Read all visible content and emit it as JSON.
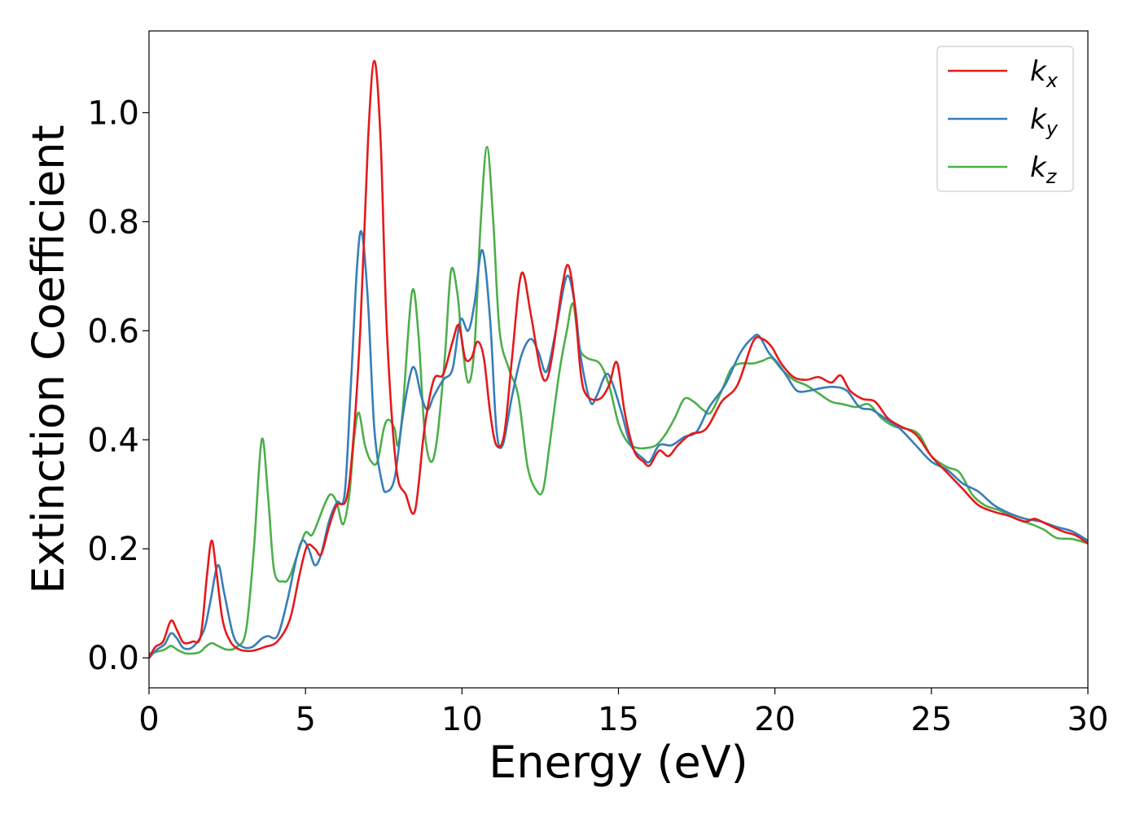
{
  "chart_data": {
    "type": "line",
    "xlabel": "Energy (eV)",
    "ylabel": "Extinction Coefficient",
    "xlim": [
      0,
      30
    ],
    "ylim": [
      -0.055,
      1.15
    ],
    "xticks": [
      0,
      5,
      10,
      15,
      20,
      25,
      30
    ],
    "yticks": [
      0.0,
      0.2,
      0.4,
      0.6,
      0.8,
      1.0
    ],
    "xtick_labels": [
      "0",
      "5",
      "10",
      "15",
      "20",
      "25",
      "30"
    ],
    "ytick_labels": [
      "0.0",
      "0.2",
      "0.4",
      "0.6",
      "0.8",
      "1.0"
    ],
    "grid": false,
    "legend_position": "top-right",
    "series": [
      {
        "name": "k",
        "subscript": "x",
        "color": "#e41a1c",
        "points": [
          [
            0,
            0.0
          ],
          [
            0.2,
            0.02
          ],
          [
            0.45,
            0.03
          ],
          [
            0.7,
            0.068
          ],
          [
            0.9,
            0.05
          ],
          [
            1.1,
            0.028
          ],
          [
            1.4,
            0.03
          ],
          [
            1.65,
            0.04
          ],
          [
            1.85,
            0.15
          ],
          [
            2.0,
            0.215
          ],
          [
            2.15,
            0.16
          ],
          [
            2.35,
            0.07
          ],
          [
            2.6,
            0.03
          ],
          [
            2.9,
            0.015
          ],
          [
            3.3,
            0.013
          ],
          [
            3.7,
            0.02
          ],
          [
            4.1,
            0.03
          ],
          [
            4.5,
            0.07
          ],
          [
            4.8,
            0.15
          ],
          [
            5.05,
            0.205
          ],
          [
            5.3,
            0.2
          ],
          [
            5.5,
            0.19
          ],
          [
            5.75,
            0.24
          ],
          [
            6.0,
            0.28
          ],
          [
            6.3,
            0.29
          ],
          [
            6.5,
            0.38
          ],
          [
            6.75,
            0.6
          ],
          [
            7.0,
            0.95
          ],
          [
            7.2,
            1.095
          ],
          [
            7.4,
            0.95
          ],
          [
            7.6,
            0.6
          ],
          [
            7.9,
            0.35
          ],
          [
            8.2,
            0.3
          ],
          [
            8.5,
            0.27
          ],
          [
            8.8,
            0.42
          ],
          [
            9.1,
            0.51
          ],
          [
            9.4,
            0.52
          ],
          [
            9.7,
            0.58
          ],
          [
            9.9,
            0.61
          ],
          [
            10.1,
            0.55
          ],
          [
            10.3,
            0.55
          ],
          [
            10.5,
            0.58
          ],
          [
            10.7,
            0.55
          ],
          [
            10.9,
            0.45
          ],
          [
            11.1,
            0.39
          ],
          [
            11.35,
            0.41
          ],
          [
            11.6,
            0.55
          ],
          [
            11.9,
            0.705
          ],
          [
            12.2,
            0.63
          ],
          [
            12.5,
            0.53
          ],
          [
            12.7,
            0.51
          ],
          [
            12.9,
            0.56
          ],
          [
            13.2,
            0.68
          ],
          [
            13.4,
            0.72
          ],
          [
            13.6,
            0.65
          ],
          [
            13.8,
            0.52
          ],
          [
            14.0,
            0.48
          ],
          [
            14.4,
            0.475
          ],
          [
            14.7,
            0.5
          ],
          [
            14.95,
            0.542
          ],
          [
            15.2,
            0.45
          ],
          [
            15.5,
            0.38
          ],
          [
            15.8,
            0.36
          ],
          [
            16.0,
            0.353
          ],
          [
            16.3,
            0.38
          ],
          [
            16.6,
            0.37
          ],
          [
            16.9,
            0.39
          ],
          [
            17.3,
            0.41
          ],
          [
            17.8,
            0.42
          ],
          [
            18.3,
            0.47
          ],
          [
            18.8,
            0.5
          ],
          [
            19.3,
            0.58
          ],
          [
            19.6,
            0.585
          ],
          [
            19.9,
            0.57
          ],
          [
            20.2,
            0.54
          ],
          [
            20.6,
            0.515
          ],
          [
            21.0,
            0.51
          ],
          [
            21.4,
            0.515
          ],
          [
            21.8,
            0.505
          ],
          [
            22.1,
            0.518
          ],
          [
            22.4,
            0.49
          ],
          [
            22.8,
            0.475
          ],
          [
            23.2,
            0.47
          ],
          [
            23.6,
            0.44
          ],
          [
            24.0,
            0.425
          ],
          [
            24.5,
            0.41
          ],
          [
            25.0,
            0.37
          ],
          [
            25.5,
            0.34
          ],
          [
            26.0,
            0.31
          ],
          [
            26.5,
            0.28
          ],
          [
            27.0,
            0.268
          ],
          [
            27.5,
            0.26
          ],
          [
            28.0,
            0.25
          ],
          [
            28.3,
            0.255
          ],
          [
            28.7,
            0.245
          ],
          [
            29.2,
            0.232
          ],
          [
            29.6,
            0.225
          ],
          [
            30.0,
            0.21
          ]
        ]
      },
      {
        "name": "k",
        "subscript": "y",
        "color": "#377eb8",
        "points": [
          [
            0,
            0.0
          ],
          [
            0.25,
            0.015
          ],
          [
            0.5,
            0.025
          ],
          [
            0.7,
            0.045
          ],
          [
            0.9,
            0.035
          ],
          [
            1.1,
            0.018
          ],
          [
            1.4,
            0.02
          ],
          [
            1.75,
            0.05
          ],
          [
            1.95,
            0.1
          ],
          [
            2.2,
            0.17
          ],
          [
            2.4,
            0.12
          ],
          [
            2.7,
            0.04
          ],
          [
            3.0,
            0.02
          ],
          [
            3.3,
            0.02
          ],
          [
            3.6,
            0.035
          ],
          [
            3.8,
            0.04
          ],
          [
            4.1,
            0.04
          ],
          [
            4.4,
            0.1
          ],
          [
            4.7,
            0.18
          ],
          [
            4.9,
            0.215
          ],
          [
            5.1,
            0.2
          ],
          [
            5.3,
            0.17
          ],
          [
            5.5,
            0.19
          ],
          [
            5.75,
            0.25
          ],
          [
            6.0,
            0.285
          ],
          [
            6.25,
            0.3
          ],
          [
            6.45,
            0.5
          ],
          [
            6.65,
            0.72
          ],
          [
            6.8,
            0.78
          ],
          [
            7.0,
            0.65
          ],
          [
            7.2,
            0.42
          ],
          [
            7.45,
            0.32
          ],
          [
            7.6,
            0.305
          ],
          [
            7.85,
            0.33
          ],
          [
            8.1,
            0.44
          ],
          [
            8.35,
            0.52
          ],
          [
            8.5,
            0.53
          ],
          [
            8.7,
            0.48
          ],
          [
            8.9,
            0.455
          ],
          [
            9.1,
            0.48
          ],
          [
            9.4,
            0.51
          ],
          [
            9.7,
            0.53
          ],
          [
            9.95,
            0.62
          ],
          [
            10.2,
            0.6
          ],
          [
            10.4,
            0.65
          ],
          [
            10.65,
            0.748
          ],
          [
            10.9,
            0.62
          ],
          [
            11.1,
            0.42
          ],
          [
            11.3,
            0.39
          ],
          [
            11.6,
            0.48
          ],
          [
            11.9,
            0.555
          ],
          [
            12.2,
            0.585
          ],
          [
            12.45,
            0.56
          ],
          [
            12.7,
            0.525
          ],
          [
            13.0,
            0.6
          ],
          [
            13.35,
            0.7
          ],
          [
            13.6,
            0.65
          ],
          [
            13.8,
            0.55
          ],
          [
            14.1,
            0.47
          ],
          [
            14.3,
            0.48
          ],
          [
            14.6,
            0.52
          ],
          [
            14.8,
            0.505
          ],
          [
            15.1,
            0.45
          ],
          [
            15.4,
            0.39
          ],
          [
            15.8,
            0.365
          ],
          [
            16.0,
            0.36
          ],
          [
            16.3,
            0.39
          ],
          [
            16.7,
            0.39
          ],
          [
            17.1,
            0.405
          ],
          [
            17.5,
            0.415
          ],
          [
            17.9,
            0.46
          ],
          [
            18.4,
            0.5
          ],
          [
            18.9,
            0.56
          ],
          [
            19.3,
            0.588
          ],
          [
            19.5,
            0.59
          ],
          [
            19.8,
            0.56
          ],
          [
            20.1,
            0.54
          ],
          [
            20.4,
            0.515
          ],
          [
            20.7,
            0.49
          ],
          [
            21.1,
            0.49
          ],
          [
            21.5,
            0.495
          ],
          [
            21.9,
            0.497
          ],
          [
            22.3,
            0.49
          ],
          [
            22.7,
            0.46
          ],
          [
            23.1,
            0.455
          ],
          [
            23.5,
            0.44
          ],
          [
            24.0,
            0.42
          ],
          [
            24.5,
            0.39
          ],
          [
            25.0,
            0.36
          ],
          [
            25.5,
            0.345
          ],
          [
            26.0,
            0.32
          ],
          [
            26.5,
            0.305
          ],
          [
            27.0,
            0.28
          ],
          [
            27.5,
            0.265
          ],
          [
            28.0,
            0.255
          ],
          [
            28.5,
            0.25
          ],
          [
            29.0,
            0.24
          ],
          [
            29.5,
            0.232
          ],
          [
            30.0,
            0.215
          ]
        ]
      },
      {
        "name": "k",
        "subscript": "z",
        "color": "#4daf4a",
        "points": [
          [
            0,
            0.008
          ],
          [
            0.3,
            0.012
          ],
          [
            0.5,
            0.015
          ],
          [
            0.7,
            0.022
          ],
          [
            0.9,
            0.015
          ],
          [
            1.2,
            0.008
          ],
          [
            1.6,
            0.01
          ],
          [
            1.8,
            0.02
          ],
          [
            2.0,
            0.027
          ],
          [
            2.2,
            0.022
          ],
          [
            2.5,
            0.015
          ],
          [
            2.8,
            0.02
          ],
          [
            3.1,
            0.05
          ],
          [
            3.35,
            0.2
          ],
          [
            3.6,
            0.4
          ],
          [
            3.8,
            0.3
          ],
          [
            4.0,
            0.16
          ],
          [
            4.3,
            0.14
          ],
          [
            4.5,
            0.15
          ],
          [
            4.8,
            0.2
          ],
          [
            5.0,
            0.23
          ],
          [
            5.2,
            0.225
          ],
          [
            5.4,
            0.25
          ],
          [
            5.6,
            0.28
          ],
          [
            5.8,
            0.3
          ],
          [
            6.0,
            0.285
          ],
          [
            6.2,
            0.245
          ],
          [
            6.4,
            0.3
          ],
          [
            6.55,
            0.4
          ],
          [
            6.7,
            0.45
          ],
          [
            6.9,
            0.39
          ],
          [
            7.1,
            0.36
          ],
          [
            7.3,
            0.36
          ],
          [
            7.5,
            0.42
          ],
          [
            7.65,
            0.437
          ],
          [
            7.85,
            0.42
          ],
          [
            7.95,
            0.39
          ],
          [
            8.1,
            0.45
          ],
          [
            8.4,
            0.67
          ],
          [
            8.6,
            0.6
          ],
          [
            8.8,
            0.42
          ],
          [
            9.0,
            0.36
          ],
          [
            9.2,
            0.4
          ],
          [
            9.45,
            0.55
          ],
          [
            9.65,
            0.71
          ],
          [
            9.85,
            0.67
          ],
          [
            10.0,
            0.58
          ],
          [
            10.2,
            0.505
          ],
          [
            10.4,
            0.57
          ],
          [
            10.6,
            0.8
          ],
          [
            10.8,
            0.937
          ],
          [
            11.0,
            0.8
          ],
          [
            11.2,
            0.6
          ],
          [
            11.5,
            0.53
          ],
          [
            11.8,
            0.48
          ],
          [
            12.1,
            0.35
          ],
          [
            12.4,
            0.305
          ],
          [
            12.6,
            0.31
          ],
          [
            12.8,
            0.39
          ],
          [
            13.1,
            0.52
          ],
          [
            13.35,
            0.6
          ],
          [
            13.55,
            0.65
          ],
          [
            13.75,
            0.57
          ],
          [
            14.0,
            0.55
          ],
          [
            14.4,
            0.54
          ],
          [
            14.7,
            0.5
          ],
          [
            15.0,
            0.43
          ],
          [
            15.3,
            0.395
          ],
          [
            15.6,
            0.385
          ],
          [
            15.9,
            0.385
          ],
          [
            16.2,
            0.39
          ],
          [
            16.5,
            0.41
          ],
          [
            16.8,
            0.44
          ],
          [
            17.1,
            0.475
          ],
          [
            17.4,
            0.47
          ],
          [
            17.7,
            0.455
          ],
          [
            17.95,
            0.45
          ],
          [
            18.3,
            0.49
          ],
          [
            18.6,
            0.53
          ],
          [
            18.9,
            0.54
          ],
          [
            19.3,
            0.54
          ],
          [
            19.6,
            0.545
          ],
          [
            19.9,
            0.55
          ],
          [
            20.2,
            0.53
          ],
          [
            20.6,
            0.51
          ],
          [
            21.0,
            0.5
          ],
          [
            21.4,
            0.485
          ],
          [
            21.8,
            0.47
          ],
          [
            22.2,
            0.465
          ],
          [
            22.6,
            0.46
          ],
          [
            23.0,
            0.465
          ],
          [
            23.4,
            0.44
          ],
          [
            23.8,
            0.425
          ],
          [
            24.2,
            0.42
          ],
          [
            24.6,
            0.41
          ],
          [
            25.0,
            0.37
          ],
          [
            25.5,
            0.35
          ],
          [
            25.9,
            0.34
          ],
          [
            26.3,
            0.3
          ],
          [
            26.7,
            0.28
          ],
          [
            27.2,
            0.27
          ],
          [
            27.7,
            0.255
          ],
          [
            28.2,
            0.245
          ],
          [
            28.6,
            0.235
          ],
          [
            29.0,
            0.22
          ],
          [
            29.5,
            0.218
          ],
          [
            30.0,
            0.21
          ]
        ]
      }
    ]
  }
}
